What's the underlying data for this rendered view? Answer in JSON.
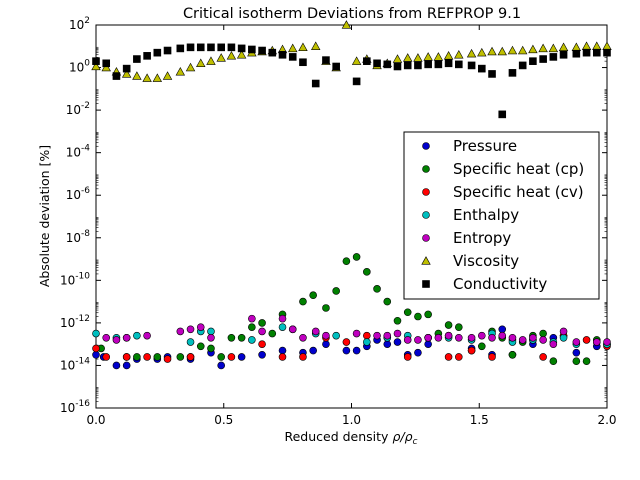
{
  "chart_data": {
    "type": "scatter",
    "title": "Critical isotherm Deviations from REFPROP 9.1",
    "xlabel": "Reduced density",
    "xlabel_math": "ρ/ρ",
    "xlabel_sub": "c",
    "ylabel": "Absolute deviation [%]",
    "xlim": [
      0.0,
      2.0
    ],
    "ylim_exp": [
      -16,
      2
    ],
    "y_scale": "log",
    "x_ticks": [
      "0.0",
      "0.5",
      "1.0",
      "1.5",
      "2.0"
    ],
    "y_tick_exponents": [
      -16,
      -14,
      -12,
      -10,
      -8,
      -6,
      -4,
      -2,
      0,
      2
    ],
    "grid": false,
    "legend_position": "center-right",
    "series": [
      {
        "name": "Pressure",
        "marker": "circle",
        "color": "#0000cc",
        "x": [
          0.0,
          0.03,
          0.08,
          0.12,
          0.16,
          0.24,
          0.28,
          0.37,
          0.45,
          0.49,
          0.57,
          0.65,
          0.73,
          0.81,
          0.85,
          0.9,
          0.98,
          1.02,
          1.06,
          1.1,
          1.14,
          1.18,
          1.22,
          1.26,
          1.3,
          1.38,
          1.47,
          1.55,
          1.59,
          1.63,
          1.71,
          1.79,
          1.88,
          1.96,
          2.0
        ],
        "y_exp": [
          -13.5,
          -13.6,
          -14.0,
          -14.0,
          -13.7,
          -13.7,
          -13.6,
          -13.7,
          -13.4,
          -14.0,
          -13.6,
          -13.5,
          -13.3,
          -13.4,
          -13.3,
          -13.0,
          -13.3,
          -13.3,
          -13.1,
          -12.8,
          -13.0,
          -12.9,
          -13.5,
          -13.4,
          -13.0,
          -12.6,
          -13.2,
          -13.5,
          -12.3,
          -13.5,
          -13.0,
          -12.7,
          -13.4,
          -13.1,
          -13.0
        ]
      },
      {
        "name": "Specific heat (cp)",
        "marker": "circle",
        "color": "#008000",
        "x": [
          0.02,
          0.12,
          0.16,
          0.24,
          0.33,
          0.37,
          0.41,
          0.45,
          0.49,
          0.53,
          0.57,
          0.61,
          0.65,
          0.69,
          0.73,
          0.77,
          0.81,
          0.85,
          0.9,
          0.94,
          0.98,
          1.02,
          1.06,
          1.1,
          1.14,
          1.18,
          1.22,
          1.26,
          1.3,
          1.34,
          1.38,
          1.42,
          1.47,
          1.51,
          1.55,
          1.59,
          1.63,
          1.67,
          1.71,
          1.75,
          1.79,
          1.83,
          1.88,
          1.92,
          1.96,
          2.0
        ],
        "y_exp": [
          -13.2,
          -13.6,
          -13.6,
          -13.6,
          -13.6,
          -13.6,
          -13.1,
          -13.2,
          -13.6,
          -12.7,
          -12.7,
          -12.2,
          -12.0,
          -12.5,
          -11.6,
          -12.3,
          -11.0,
          -10.7,
          -11.3,
          -10.5,
          -9.1,
          -8.9,
          -9.6,
          -10.4,
          -11.0,
          -11.9,
          -11.5,
          -11.7,
          -11.6,
          -12.5,
          -12.1,
          -12.2,
          -13.3,
          -13.1,
          -12.4,
          -12.7,
          -13.5,
          -12.9,
          -12.6,
          -12.5,
          -13.8,
          -12.6,
          -13.8,
          -13.8,
          -12.8,
          -13.0
        ]
      },
      {
        "name": "Specific heat (cv)",
        "marker": "circle",
        "color": "#ff0000",
        "x": [
          0.0,
          0.04,
          0.12,
          0.2,
          0.28,
          0.37,
          0.53,
          0.65,
          0.73,
          0.81,
          0.9,
          0.98,
          1.06,
          1.14,
          1.22,
          1.3,
          1.38,
          1.42,
          1.47,
          1.55,
          1.63,
          1.71,
          1.75,
          1.83,
          1.92,
          2.0
        ],
        "y_exp": [
          -13.2,
          -13.6,
          -13.6,
          -13.6,
          -13.7,
          -13.6,
          -13.6,
          -13.0,
          -13.6,
          -13.6,
          -12.7,
          -12.9,
          -12.6,
          -12.7,
          -13.6,
          -12.7,
          -13.6,
          -13.6,
          -13.3,
          -13.6,
          -12.8,
          -12.8,
          -13.6,
          -12.6,
          -12.8,
          -13.1
        ]
      },
      {
        "name": "Enthalpy",
        "marker": "circle",
        "color": "#00bfbf",
        "x": [
          0.0,
          0.08,
          0.12,
          0.16,
          0.37,
          0.41,
          0.45,
          0.61,
          0.73,
          0.86,
          0.94,
          1.06,
          1.14,
          1.22,
          1.3,
          1.38,
          1.47,
          1.55,
          1.63,
          1.71,
          1.79,
          1.83,
          1.88,
          1.96,
          2.0
        ],
        "y_exp": [
          -12.5,
          -12.7,
          -12.7,
          -12.6,
          -12.9,
          -12.4,
          -12.4,
          -12.8,
          -12.2,
          -12.5,
          -12.6,
          -12.9,
          -12.7,
          -12.6,
          -12.7,
          -12.7,
          -12.8,
          -12.5,
          -12.9,
          -12.8,
          -12.9,
          -12.7,
          -13.0,
          -12.9,
          -13.0
        ]
      },
      {
        "name": "Entropy",
        "marker": "circle",
        "color": "#bf00bf",
        "x": [
          0.04,
          0.08,
          0.12,
          0.2,
          0.33,
          0.37,
          0.41,
          0.45,
          0.61,
          0.65,
          0.73,
          0.77,
          0.81,
          0.86,
          0.9,
          1.02,
          1.1,
          1.14,
          1.18,
          1.22,
          1.26,
          1.3,
          1.34,
          1.38,
          1.42,
          1.47,
          1.51,
          1.55,
          1.59,
          1.63,
          1.67,
          1.71,
          1.75,
          1.79,
          1.83,
          1.88,
          1.96,
          2.0
        ],
        "y_exp": [
          -12.7,
          -12.8,
          -12.7,
          -12.6,
          -12.4,
          -12.3,
          -12.2,
          -12.7,
          -11.8,
          -12.4,
          -11.8,
          -12.3,
          -12.7,
          -12.4,
          -12.6,
          -12.5,
          -12.6,
          -12.6,
          -12.5,
          -12.8,
          -12.8,
          -12.7,
          -12.7,
          -12.6,
          -12.7,
          -12.7,
          -12.6,
          -12.7,
          -12.6,
          -12.7,
          -12.8,
          -12.7,
          -12.8,
          -13.0,
          -12.4,
          -12.9,
          -12.9,
          -12.9
        ]
      },
      {
        "name": "Viscosity",
        "marker": "triangle",
        "color": "#bfbf00",
        "x": [
          0.0,
          0.04,
          0.08,
          0.12,
          0.16,
          0.2,
          0.24,
          0.28,
          0.33,
          0.37,
          0.41,
          0.45,
          0.49,
          0.53,
          0.57,
          0.61,
          0.65,
          0.69,
          0.73,
          0.77,
          0.81,
          0.86,
          0.9,
          0.94,
          0.98,
          1.02,
          1.06,
          1.1,
          1.14,
          1.18,
          1.22,
          1.26,
          1.3,
          1.34,
          1.38,
          1.42,
          1.47,
          1.51,
          1.55,
          1.59,
          1.63,
          1.67,
          1.71,
          1.75,
          1.79,
          1.83,
          1.88,
          1.92,
          1.96,
          2.0
        ],
        "y_exp": [
          0.05,
          0.0,
          -0.2,
          -0.3,
          -0.4,
          -0.5,
          -0.5,
          -0.4,
          -0.2,
          0.0,
          0.2,
          0.3,
          0.45,
          0.55,
          0.6,
          0.7,
          0.75,
          0.8,
          0.85,
          0.9,
          0.95,
          1.0,
          0.3,
          0.0,
          2.0,
          0.3,
          0.4,
          0.1,
          0.2,
          0.4,
          0.45,
          0.45,
          0.5,
          0.5,
          0.55,
          0.6,
          0.65,
          0.7,
          0.75,
          0.75,
          0.8,
          0.8,
          0.85,
          0.9,
          0.9,
          0.95,
          0.95,
          1.0,
          1.0,
          1.0
        ]
      },
      {
        "name": "Conductivity",
        "marker": "square",
        "color": "#000000",
        "x": [
          0.0,
          0.04,
          0.08,
          0.12,
          0.16,
          0.2,
          0.24,
          0.28,
          0.33,
          0.37,
          0.41,
          0.45,
          0.49,
          0.53,
          0.57,
          0.61,
          0.65,
          0.69,
          0.73,
          0.77,
          0.81,
          0.86,
          0.9,
          0.94,
          1.02,
          1.06,
          1.1,
          1.14,
          1.18,
          1.22,
          1.26,
          1.3,
          1.34,
          1.38,
          1.42,
          1.47,
          1.51,
          1.55,
          1.59,
          1.63,
          1.67,
          1.71,
          1.75,
          1.79,
          1.83,
          1.88,
          1.92,
          1.96,
          2.0
        ],
        "y_exp": [
          0.3,
          0.2,
          -0.4,
          -0.05,
          0.4,
          0.55,
          0.7,
          0.8,
          0.9,
          0.95,
          0.95,
          0.95,
          0.95,
          0.95,
          0.9,
          0.85,
          0.8,
          0.7,
          0.6,
          0.5,
          0.25,
          -0.75,
          0.35,
          0.05,
          -0.65,
          0.3,
          0.2,
          0.15,
          0.05,
          0.1,
          0.1,
          0.15,
          0.15,
          0.2,
          0.15,
          0.1,
          -0.05,
          -0.3,
          -2.2,
          -0.25,
          0.1,
          0.3,
          0.4,
          0.5,
          0.6,
          0.65,
          0.7,
          0.7,
          0.7
        ]
      }
    ]
  }
}
